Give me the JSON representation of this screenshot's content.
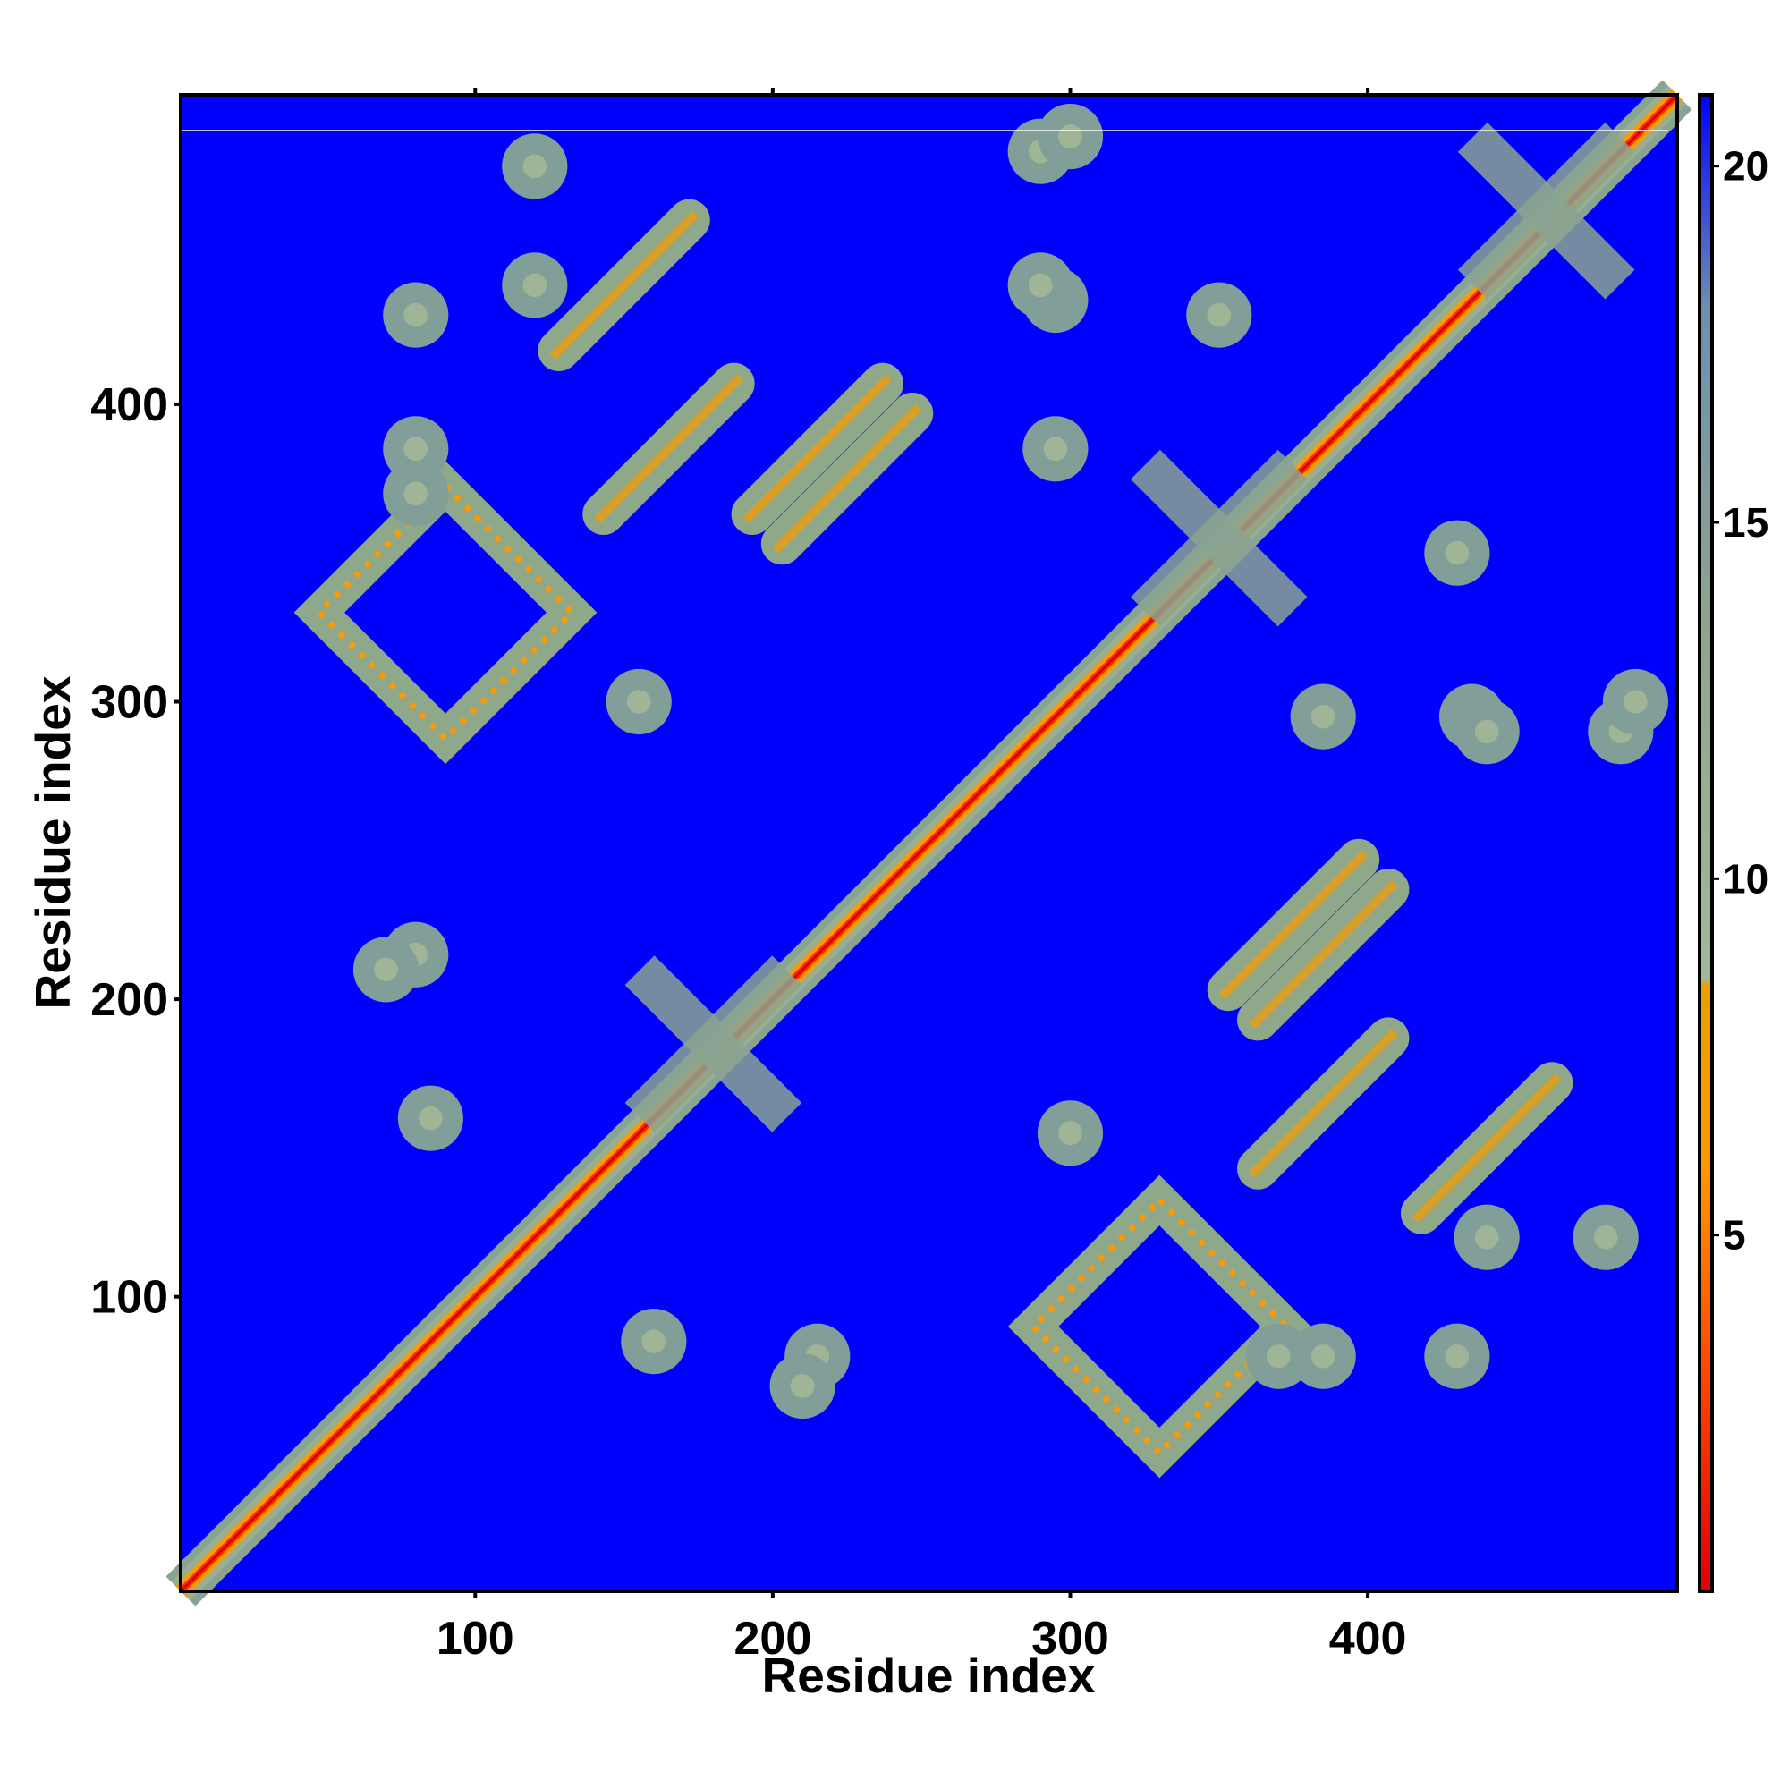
{
  "chart_data": {
    "type": "heatmap",
    "title": "",
    "xlabel": "Residue index",
    "ylabel": "Residue index",
    "xlim": [
      1,
      504
    ],
    "ylim": [
      1,
      504
    ],
    "xticks": [
      100,
      200,
      300,
      400
    ],
    "yticks": [
      100,
      200,
      300,
      400
    ],
    "colorbar": {
      "range": [
        0,
        21
      ],
      "ticks": [
        5,
        10,
        15,
        20
      ],
      "colors": [
        {
          "value": 0,
          "color": "#e00000"
        },
        {
          "value": 3,
          "color": "#ff4400"
        },
        {
          "value": 6,
          "color": "#ff9900"
        },
        {
          "value": 8.5,
          "color": "#e8a000"
        },
        {
          "value": 8.6,
          "color": "#a4b898"
        },
        {
          "value": 13,
          "color": "#8fa88a"
        },
        {
          "value": 18,
          "color": "#6f8fb0"
        },
        {
          "value": 21,
          "color": "#0000ff"
        }
      ]
    },
    "background_color": "#0000ff",
    "contact_features": [
      {
        "kind": "diagonal",
        "from": 1,
        "to": 504
      },
      {
        "kind": "cross",
        "center": [
          350,
          355
        ]
      },
      {
        "kind": "cross",
        "center": [
          180,
          185
        ]
      },
      {
        "kind": "cross",
        "center": [
          460,
          465
        ]
      },
      {
        "kind": "ring",
        "center": [
          330,
          90
        ]
      },
      {
        "kind": "ring",
        "center": [
          90,
          330
        ]
      },
      {
        "kind": "arc",
        "center": [
          150,
          440
        ]
      },
      {
        "kind": "arc",
        "center": [
          440,
          150
        ]
      },
      {
        "kind": "arc",
        "center": [
          165,
          385
        ]
      },
      {
        "kind": "arc",
        "center": [
          385,
          165
        ]
      },
      {
        "kind": "arc",
        "center": [
          225,
          375
        ]
      },
      {
        "kind": "arc",
        "center": [
          375,
          225
        ]
      },
      {
        "kind": "arc",
        "center": [
          385,
          215
        ]
      },
      {
        "kind": "arc",
        "center": [
          215,
          385
        ]
      },
      {
        "kind": "blob",
        "center": [
          290,
          485
        ]
      },
      {
        "kind": "blob",
        "center": [
          485,
          290
        ]
      },
      {
        "kind": "blob",
        "center": [
          295,
          435
        ]
      },
      {
        "kind": "blob",
        "center": [
          435,
          295
        ]
      },
      {
        "kind": "blob",
        "center": [
          300,
          490
        ]
      },
      {
        "kind": "blob",
        "center": [
          490,
          300
        ]
      },
      {
        "kind": "blob",
        "center": [
          300,
          155
        ]
      },
      {
        "kind": "blob",
        "center": [
          155,
          300
        ]
      },
      {
        "kind": "blob",
        "center": [
          80,
          215
        ]
      },
      {
        "kind": "blob",
        "center": [
          215,
          80
        ]
      },
      {
        "kind": "blob",
        "center": [
          210,
          70
        ]
      },
      {
        "kind": "blob",
        "center": [
          70,
          210
        ]
      },
      {
        "kind": "blob",
        "center": [
          80,
          370
        ]
      },
      {
        "kind": "blob",
        "center": [
          370,
          80
        ]
      },
      {
        "kind": "blob",
        "center": [
          85,
          160
        ]
      },
      {
        "kind": "blob",
        "center": [
          160,
          85
        ]
      },
      {
        "kind": "blob",
        "center": [
          430,
          80
        ]
      },
      {
        "kind": "blob",
        "center": [
          80,
          430
        ]
      },
      {
        "kind": "blob",
        "center": [
          295,
          385
        ]
      },
      {
        "kind": "blob",
        "center": [
          385,
          295
        ]
      },
      {
        "kind": "blob",
        "center": [
          290,
          440
        ]
      },
      {
        "kind": "blob",
        "center": [
          440,
          290
        ]
      },
      {
        "kind": "blob",
        "center": [
          385,
          80
        ]
      },
      {
        "kind": "blob",
        "center": [
          80,
          385
        ]
      },
      {
        "kind": "blob",
        "center": [
          430,
          350
        ]
      },
      {
        "kind": "blob",
        "center": [
          350,
          430
        ]
      },
      {
        "kind": "blob",
        "center": [
          440,
          120
        ]
      },
      {
        "kind": "blob",
        "center": [
          120,
          440
        ]
      },
      {
        "kind": "blob",
        "center": [
          480,
          120
        ]
      },
      {
        "kind": "blob",
        "center": [
          120,
          480
        ]
      }
    ]
  }
}
